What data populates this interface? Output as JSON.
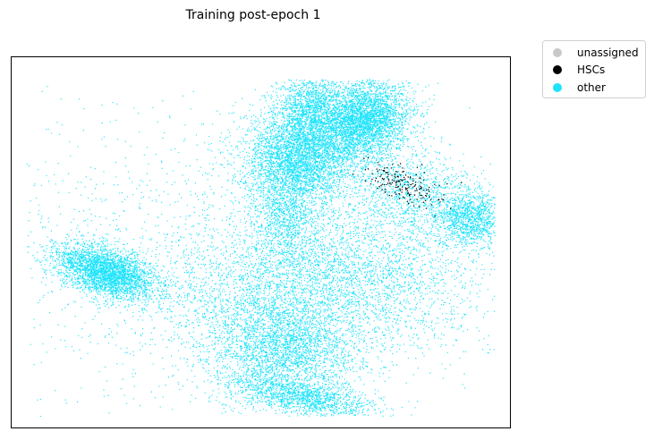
{
  "chart_data": {
    "type": "scatter",
    "title": "Training post-epoch 1",
    "xlabel": "",
    "ylabel": "",
    "grid": false,
    "axes_ticks": false,
    "legend_placement": "outside-top-right",
    "series": [
      {
        "name": "unassigned",
        "color": "#c8c8c8",
        "count": 0
      },
      {
        "name": "HSCs",
        "color": "#000000",
        "count": 180
      },
      {
        "name": "other",
        "color": "#1ee3fb",
        "count": 30000
      }
    ],
    "clusters": [
      {
        "series": "other",
        "cx": 0.19,
        "cy": 0.58,
        "sx": 0.055,
        "sy": 0.03,
        "rot": 0.45,
        "n": 3200
      },
      {
        "series": "other",
        "cx": 0.58,
        "cy": 0.27,
        "sx": 0.055,
        "sy": 0.06,
        "rot": 0.0,
        "n": 3600
      },
      {
        "series": "other",
        "cx": 0.71,
        "cy": 0.17,
        "sx": 0.045,
        "sy": 0.055,
        "rot": 0.3,
        "n": 3600
      },
      {
        "series": "other",
        "cx": 0.6,
        "cy": 0.14,
        "sx": 0.035,
        "sy": 0.05,
        "rot": 0.0,
        "n": 1400
      },
      {
        "series": "other",
        "cx": 0.92,
        "cy": 0.43,
        "sx": 0.035,
        "sy": 0.04,
        "rot": 0.0,
        "n": 1200
      },
      {
        "series": "other",
        "cx": 0.55,
        "cy": 0.8,
        "sx": 0.075,
        "sy": 0.07,
        "rot": 0.0,
        "n": 2600
      },
      {
        "series": "other",
        "cx": 0.59,
        "cy": 0.92,
        "sx": 0.07,
        "sy": 0.022,
        "rot": 0.25,
        "n": 1200
      },
      {
        "series": "other",
        "cx": 0.68,
        "cy": 0.58,
        "sx": 0.13,
        "sy": 0.11,
        "rot": 0.0,
        "n": 3200
      },
      {
        "series": "other",
        "cx": 0.55,
        "cy": 0.43,
        "sx": 0.035,
        "sy": 0.06,
        "rot": 0.0,
        "n": 900
      },
      {
        "series": "other",
        "cx": 0.8,
        "cy": 0.36,
        "sx": 0.06,
        "sy": 0.05,
        "rot": 0.5,
        "n": 900
      },
      {
        "series": "other",
        "cx": 0.35,
        "cy": 0.55,
        "sx": 0.25,
        "sy": 0.22,
        "rot": 0.0,
        "n": 1500
      },
      {
        "series": "other",
        "cx": 0.47,
        "cy": 0.65,
        "sx": 0.1,
        "sy": 0.1,
        "rot": 0.0,
        "n": 1200
      },
      {
        "series": "HSCs",
        "cx": 0.79,
        "cy": 0.34,
        "sx": 0.045,
        "sy": 0.02,
        "rot": 0.6,
        "n": 180
      }
    ]
  }
}
